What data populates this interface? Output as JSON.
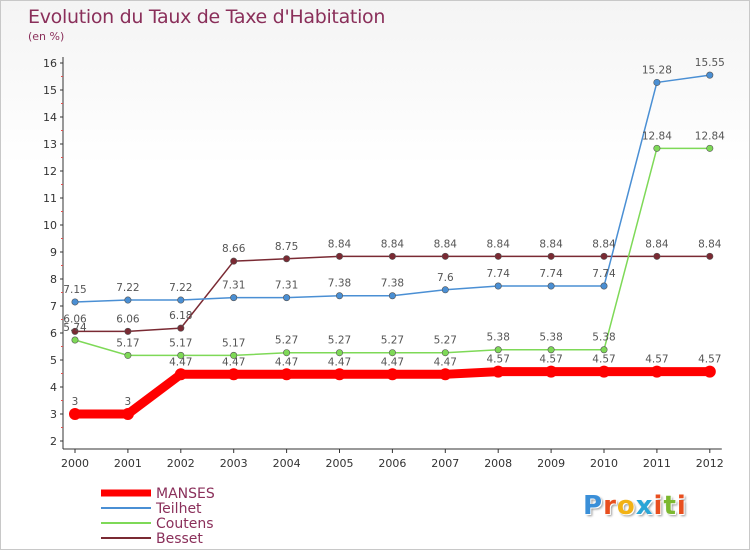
{
  "header": {
    "title": "Evolution du Taux de Taxe d'Habitation",
    "subtitle": "(en %)"
  },
  "logo": {
    "letters": [
      "P",
      "r",
      "o",
      "x",
      "i",
      "t",
      "i"
    ],
    "colors": [
      "#3a8fd8",
      "#e84f1f",
      "#f2b215",
      "#2aa5d6",
      "#e84f1f",
      "#7cb82f",
      "#e84f1f"
    ]
  },
  "chart_data": {
    "type": "line",
    "title": "Evolution du Taux de Taxe d'Habitation",
    "subtitle": "(en %)",
    "xlabel": "",
    "ylabel": "",
    "ylim": [
      2,
      16
    ],
    "yticks": [
      2,
      3,
      4,
      5,
      6,
      7,
      8,
      9,
      10,
      11,
      12,
      13,
      14,
      15,
      16
    ],
    "grid": false,
    "legend_position": "bottom-left",
    "categories": [
      "2000",
      "2001",
      "2002",
      "2003",
      "2004",
      "2005",
      "2006",
      "2007",
      "2008",
      "2009",
      "2010",
      "2011",
      "2012"
    ],
    "series": [
      {
        "name": "MANSES",
        "color": "#ff0000",
        "values": [
          3,
          3,
          4.47,
          4.47,
          4.47,
          4.47,
          4.47,
          4.47,
          4.57,
          4.57,
          4.57,
          4.57,
          4.57
        ],
        "labels": [
          "3",
          "3",
          "4.47",
          "4.47",
          "4.47",
          "4.47",
          "4.47",
          "4.47",
          "4.57",
          "4.57",
          "4.57",
          "4.57",
          "4.57"
        ]
      },
      {
        "name": "Teilhet",
        "color": "#4a8fd4",
        "values": [
          7.15,
          7.22,
          7.22,
          7.31,
          7.31,
          7.38,
          7.38,
          7.6,
          7.74,
          7.74,
          7.74,
          15.28,
          15.55
        ],
        "labels": [
          "7.15",
          "7.22",
          "7.22",
          "7.31",
          "7.31",
          "7.38",
          "7.38",
          "7.6",
          "7.74",
          "7.74",
          "7.74",
          "15.28",
          "15.55"
        ]
      },
      {
        "name": "Coutens",
        "color": "#7ed957",
        "values": [
          5.74,
          5.17,
          5.17,
          5.17,
          5.27,
          5.27,
          5.27,
          5.27,
          5.38,
          5.38,
          5.38,
          12.84,
          12.84
        ],
        "labels": [
          "5.74",
          "5.17",
          "5.17",
          "5.17",
          "5.27",
          "5.27",
          "5.27",
          "5.27",
          "5.38",
          "5.38",
          "5.38",
          "12.84",
          "12.84"
        ]
      },
      {
        "name": "Besset",
        "color": "#7a2a33",
        "values": [
          6.06,
          6.06,
          6.18,
          8.66,
          8.75,
          8.84,
          8.84,
          8.84,
          8.84,
          8.84,
          8.84,
          8.84,
          8.84
        ],
        "labels": [
          "6.06",
          "6.06",
          "6.18",
          "8.66",
          "8.75",
          "8.84",
          "8.84",
          "8.84",
          "8.84",
          "8.84",
          "8.84",
          "8.84",
          "8.84"
        ]
      }
    ]
  }
}
